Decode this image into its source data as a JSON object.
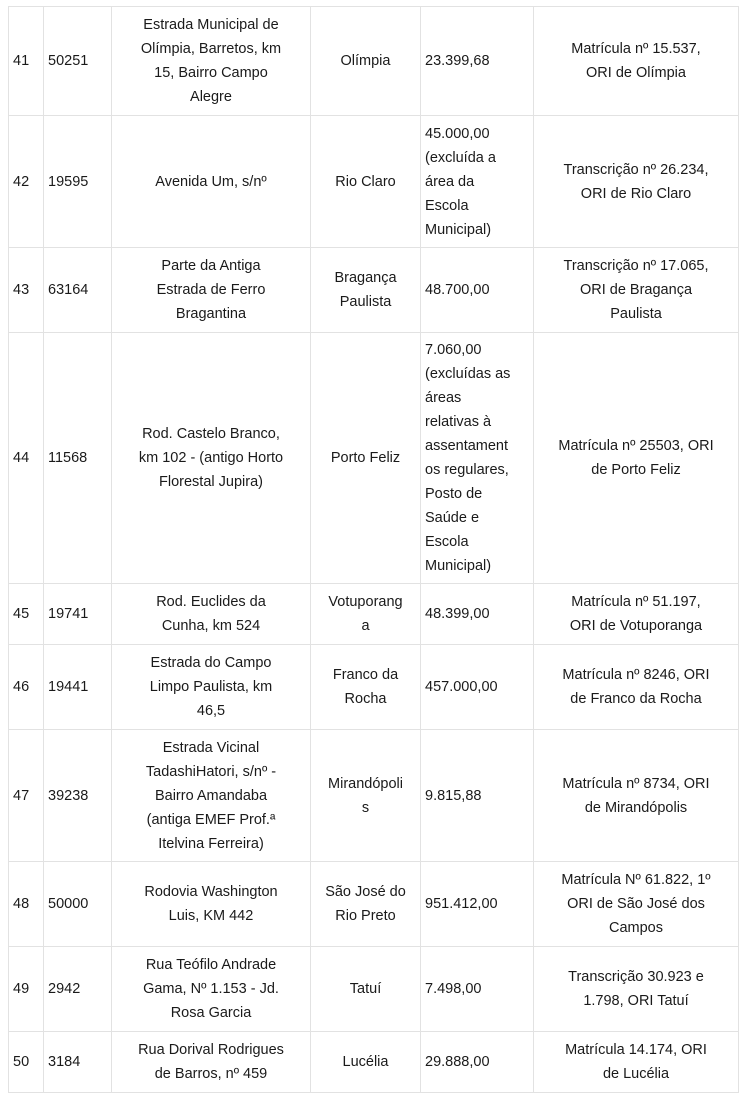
{
  "rows": [
    {
      "num": "41",
      "code": "50251",
      "address": "Estrada Municipal de\nOlímpia, Barretos, km\n15, Bairro Campo\nAlegre",
      "city": "Olímpia",
      "area": "23.399,68",
      "registry": "Matrícula nº 15.537,\nORI de Olímpia"
    },
    {
      "num": "42",
      "code": "19595",
      "address": "Avenida Um, s/nº",
      "city": "Rio Claro",
      "area": "45.000,00\n(excluída   a\nárea        da\nEscola\nMunicipal)",
      "registry": "Transcrição nº 26.234,\nORI  de Rio Claro"
    },
    {
      "num": "43",
      "code": "63164",
      "address": "Parte da Antiga\nEstrada de Ferro\nBragantina",
      "city": "Bragança\nPaulista",
      "area": "48.700,00",
      "registry": "Transcrição nº 17.065,\nORI de Bragança\nPaulista"
    },
    {
      "num": "44",
      "code": "11568",
      "address": "Rod. Castelo Branco,\nkm 102 - (antigo Horto\nFlorestal Jupira)",
      "city": "Porto Feliz",
      "area": "7.060,00\n(excluídas as\náreas\nrelativas     à\nassentament\nos regulares,\nPosto       de\nSaúde        e\nEscola\nMunicipal)",
      "registry": "Matrícula nº 25503, ORI\nde Porto Feliz"
    },
    {
      "num": "45",
      "code": "19741",
      "address": "Rod. Euclides da\nCunha, km 524",
      "city": "Votuporang\na",
      "area": "48.399,00",
      "registry": "Matrícula nº 51.197,\nORI de Votuporanga"
    },
    {
      "num": "46",
      "code": "19441",
      "address": "Estrada do Campo\nLimpo Paulista, km\n46,5",
      "city": "Franco da\nRocha",
      "area": "457.000,00",
      "registry": "Matrícula nº 8246, ORI\nde Franco da Rocha"
    },
    {
      "num": "47",
      "code": "39238",
      "address": "Estrada Vicinal\nTadashiHatori, s/nº -\nBairro Amandaba\n(antiga EMEF Prof.ª\nItelvina Ferreira)",
      "city": "Mirandópoli\ns",
      "area": "9.815,88",
      "registry": "Matrícula nº 8734, ORI\nde Mirandópolis"
    },
    {
      "num": "48",
      "code": "50000",
      "address": "Rodovia Washington\nLuis, KM 442",
      "city": "São José do\nRio Preto",
      "area": "951.412,00",
      "registry": "Matrícula Nº 61.822, 1º\nORI de São José dos\nCampos"
    },
    {
      "num": "49",
      "code": "2942",
      "address": "Rua Teófilo Andrade\nGama, Nº 1.153 - Jd.\nRosa Garcia",
      "city": "Tatuí",
      "area": "7.498,00",
      "registry": "Transcrição 30.923 e\n1.798, ORI Tatuí"
    },
    {
      "num": "50",
      "code": "3184",
      "address": "Rua Dorival Rodrigues\nde Barros, nº 459",
      "city": "Lucélia",
      "area": "29.888,00",
      "registry": "Matrícula 14.174, ORI\nde Lucélia"
    }
  ]
}
